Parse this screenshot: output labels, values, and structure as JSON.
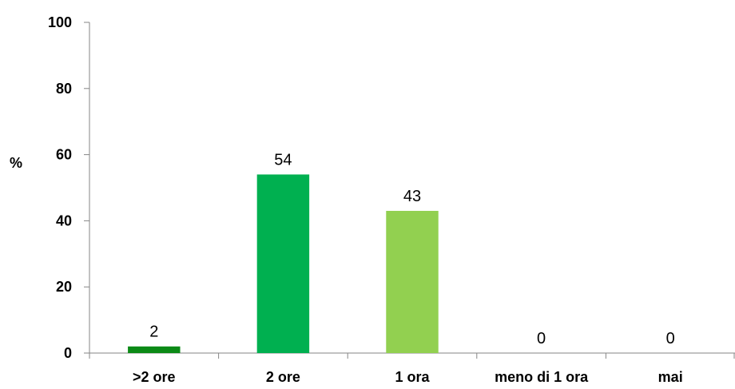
{
  "chart_data": {
    "type": "bar",
    "categories": [
      ">2 ore",
      "2 ore",
      "1 ora",
      "meno di 1 ora",
      "mai"
    ],
    "values": [
      2,
      54,
      43,
      0,
      0
    ],
    "colors": [
      "#0b8a16",
      "#00b050",
      "#92d050",
      "#92d050",
      "#92d050"
    ],
    "title": "",
    "xlabel": "",
    "ylabel": "%",
    "ylim": [
      0,
      100
    ],
    "yticks": [
      0,
      20,
      40,
      60,
      80,
      100
    ],
    "grid": false,
    "legend": "none"
  }
}
